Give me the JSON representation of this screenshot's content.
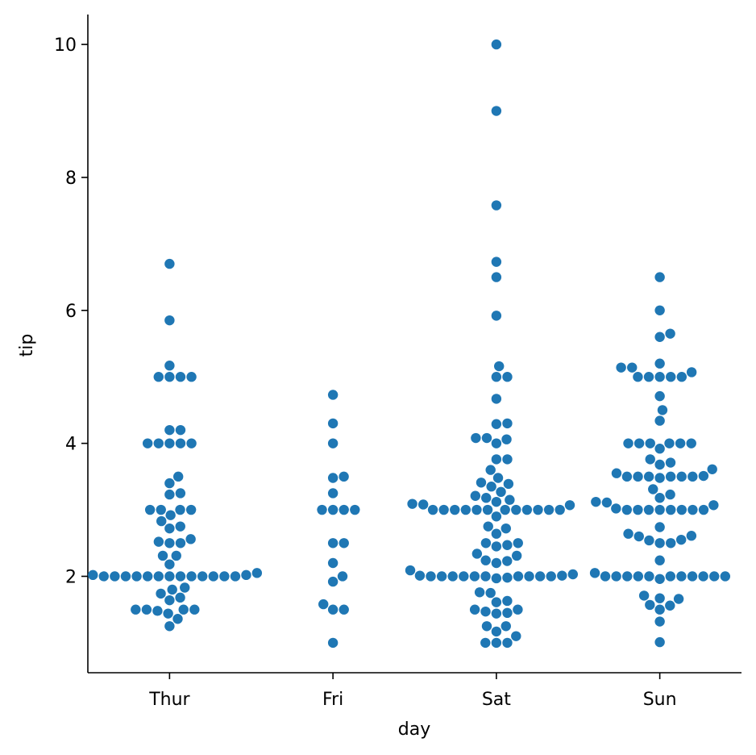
{
  "chart_data": {
    "type": "scatter",
    "subtype": "swarm",
    "xlabel": "day",
    "ylabel": "tip",
    "categories": [
      "Thur",
      "Fri",
      "Sat",
      "Sun"
    ],
    "y_ticks": [
      "2",
      "4",
      "6",
      "8",
      "10"
    ],
    "ylim": [
      0.55,
      10.45
    ],
    "grid": false,
    "legend": "none",
    "marker_color": "#1f77b4",
    "series": [
      {
        "category": "Thur",
        "values": [
          6.7,
          5.85,
          5.17,
          5.0,
          5.0,
          5.0,
          5.0,
          4.2,
          4.2,
          4.0,
          4.0,
          4.0,
          4.0,
          4.0,
          3.5,
          3.4,
          3.25,
          3.23,
          3.0,
          3.0,
          3.0,
          3.0,
          2.92,
          2.83,
          2.75,
          2.72,
          2.56,
          2.52,
          2.5,
          2.5,
          2.31,
          2.31,
          2.18,
          2.05,
          2.02,
          2.02,
          2.0,
          2.0,
          2.0,
          2.0,
          2.0,
          2.0,
          2.0,
          2.0,
          2.0,
          2.0,
          2.0,
          2.0,
          2.0,
          1.83,
          1.8,
          1.74,
          1.68,
          1.64,
          1.5,
          1.5,
          1.5,
          1.5,
          1.48,
          1.44,
          1.36,
          1.25
        ]
      },
      {
        "category": "Fri",
        "values": [
          4.73,
          4.3,
          4.0,
          3.5,
          3.48,
          3.25,
          3.0,
          3.0,
          3.0,
          3.0,
          2.5,
          2.5,
          2.2,
          2.0,
          1.92,
          1.58,
          1.5,
          1.5,
          1.0
        ]
      },
      {
        "category": "Sat",
        "values": [
          10.0,
          9.0,
          7.58,
          6.73,
          6.5,
          5.92,
          5.16,
          5.0,
          5.0,
          4.67,
          4.3,
          4.29,
          4.08,
          4.08,
          4.06,
          4.0,
          3.76,
          3.76,
          3.6,
          3.48,
          3.41,
          3.39,
          3.35,
          3.27,
          3.21,
          3.18,
          3.15,
          3.12,
          3.09,
          3.08,
          3.07,
          3.0,
          3.0,
          3.0,
          3.0,
          3.0,
          3.0,
          3.0,
          3.0,
          3.0,
          3.0,
          3.0,
          3.0,
          2.9,
          2.75,
          2.72,
          2.64,
          2.5,
          2.5,
          2.47,
          2.45,
          2.34,
          2.31,
          2.24,
          2.23,
          2.2,
          2.09,
          2.03,
          2.01,
          2.01,
          2.0,
          2.0,
          2.0,
          2.0,
          2.0,
          2.0,
          2.0,
          2.0,
          2.0,
          2.0,
          1.98,
          1.97,
          1.76,
          1.75,
          1.63,
          1.61,
          1.5,
          1.5,
          1.47,
          1.45,
          1.44,
          1.25,
          1.25,
          1.17,
          1.1,
          1.0,
          1.0,
          1.0
        ]
      },
      {
        "category": "Sun",
        "values": [
          6.5,
          6.0,
          5.65,
          5.6,
          5.2,
          5.14,
          5.14,
          5.07,
          5.0,
          5.0,
          5.0,
          5.0,
          5.0,
          4.71,
          4.5,
          4.34,
          4.0,
          4.0,
          4.0,
          4.0,
          4.0,
          4.0,
          3.92,
          3.76,
          3.71,
          3.68,
          3.61,
          3.55,
          3.51,
          3.5,
          3.5,
          3.5,
          3.5,
          3.5,
          3.5,
          3.48,
          3.31,
          3.23,
          3.18,
          3.12,
          3.11,
          3.07,
          3.02,
          3.0,
          3.0,
          3.0,
          3.0,
          3.0,
          3.0,
          3.0,
          3.0,
          2.74,
          2.64,
          2.61,
          2.6,
          2.55,
          2.54,
          2.5,
          2.5,
          2.24,
          2.05,
          2.0,
          2.0,
          2.0,
          2.0,
          2.0,
          2.0,
          2.0,
          2.0,
          2.0,
          2.0,
          2.0,
          1.96,
          1.71,
          1.67,
          1.66,
          1.57,
          1.56,
          1.5,
          1.32,
          1.01
        ]
      }
    ]
  }
}
